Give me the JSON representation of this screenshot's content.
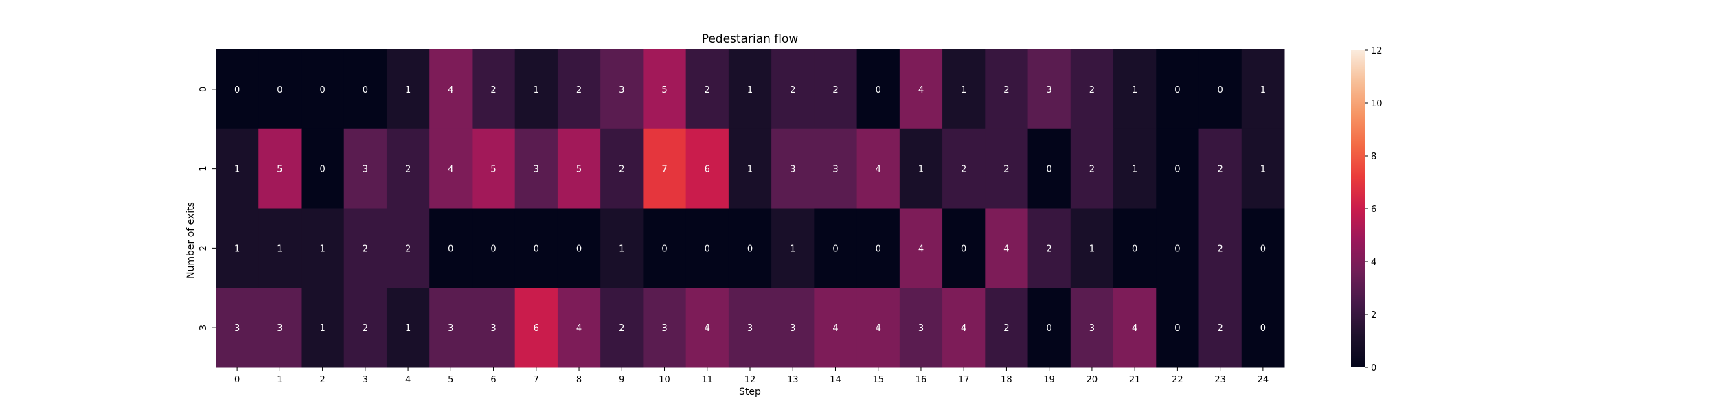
{
  "chart_data": {
    "type": "heatmap",
    "title": "Pedestarian flow",
    "xlabel": "Step",
    "ylabel": "Number of exits",
    "x_categories": [
      "0",
      "1",
      "2",
      "3",
      "4",
      "5",
      "6",
      "7",
      "8",
      "9",
      "10",
      "11",
      "12",
      "13",
      "14",
      "15",
      "16",
      "17",
      "18",
      "19",
      "20",
      "21",
      "22",
      "23",
      "24"
    ],
    "y_categories": [
      "0",
      "1",
      "2",
      "3"
    ],
    "values": [
      [
        0,
        0,
        0,
        0,
        1,
        4,
        2,
        1,
        2,
        3,
        5,
        2,
        1,
        2,
        2,
        0,
        4,
        1,
        2,
        3,
        2,
        1,
        0,
        0,
        1
      ],
      [
        1,
        5,
        0,
        3,
        2,
        4,
        5,
        3,
        5,
        2,
        7,
        6,
        1,
        3,
        3,
        4,
        1,
        2,
        2,
        0,
        2,
        1,
        0,
        2,
        1
      ],
      [
        1,
        1,
        1,
        2,
        2,
        0,
        0,
        0,
        0,
        1,
        0,
        0,
        0,
        1,
        0,
        0,
        4,
        0,
        4,
        2,
        1,
        0,
        0,
        2,
        0
      ],
      [
        3,
        3,
        1,
        2,
        1,
        3,
        3,
        6,
        4,
        2,
        3,
        4,
        3,
        3,
        4,
        4,
        3,
        4,
        2,
        0,
        3,
        4,
        0,
        2,
        0
      ]
    ],
    "colorbar": {
      "min": 0,
      "max": 12,
      "ticks": [
        "0",
        "2",
        "4",
        "6",
        "8",
        "10",
        "12"
      ],
      "colormap": "rocket"
    },
    "annotations": true,
    "grid": false
  }
}
